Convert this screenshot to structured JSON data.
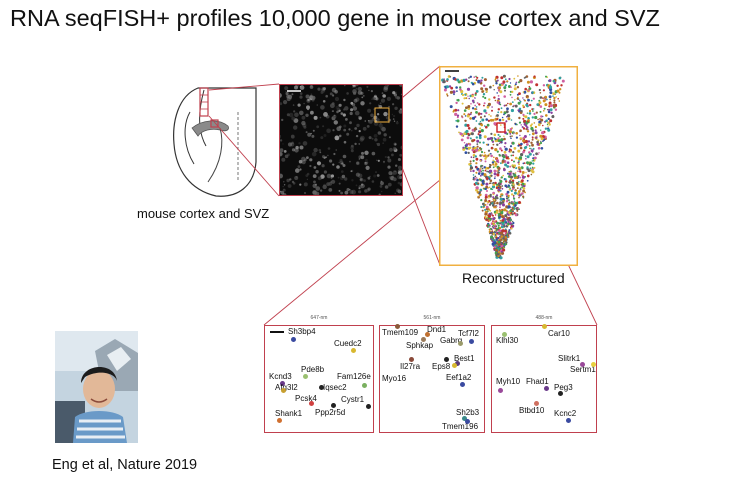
{
  "title": "RNA seqFISH+ profiles 10,000 gene in mouse cortex and SVZ",
  "brain_label": "mouse cortex and SVZ",
  "recon_label": "Reconstructured",
  "citation": "Eng et al, Nature 2019",
  "colors": {
    "outline": "#c0404e",
    "zoom_box": "#f0b040",
    "accent_red": "#cc2020"
  },
  "panels": [
    {
      "header": "647-nm",
      "genes": [
        {
          "name": "Sh3bp4",
          "dot": "#3a4aa0"
        },
        {
          "name": "Cuedc2",
          "dot": "#d8b830"
        },
        {
          "name": "Pde8b",
          "dot": "#9ac070"
        },
        {
          "name": "Kcnd3",
          "dot": "#6a3a8a"
        },
        {
          "name": "Afg3l2",
          "dot": "#c8a030"
        },
        {
          "name": "Fam126e",
          "dot": "#7ab060"
        },
        {
          "name": "Iqsec2",
          "dot": "#222222"
        },
        {
          "name": "Pcsk4",
          "dot": "#d04040"
        },
        {
          "name": "Cystr1",
          "dot": "#222222"
        },
        {
          "name": "Shank1",
          "dot": "#d07030"
        },
        {
          "name": "Ppp2r5d",
          "dot": "#222222"
        }
      ]
    },
    {
      "header": "561-nm",
      "genes": [
        {
          "name": "Tmem109",
          "dot": "#8a5a3a"
        },
        {
          "name": "Dnd1",
          "dot": "#c07030"
        },
        {
          "name": "Tcf7l2",
          "dot": "#3a4aa0"
        },
        {
          "name": "Sphkap",
          "dot": "#9a7a5a"
        },
        {
          "name": "Gabrq",
          "dot": "#9a9a6a"
        },
        {
          "name": "Best1",
          "dot": "#5a3a7a"
        },
        {
          "name": "Il27ra",
          "dot": "#8a4a3a"
        },
        {
          "name": "Eps8",
          "dot": "#222222"
        },
        {
          "name": "Myo16",
          "dot": "#d8b830"
        },
        {
          "name": "Eef1a2",
          "dot": "#3a4aa0"
        },
        {
          "name": "Sh2b3",
          "dot": "#3a8a8a"
        },
        {
          "name": "Tmem196",
          "dot": "#3a4aa0"
        }
      ]
    },
    {
      "header": "488-nm",
      "genes": [
        {
          "name": "Car10",
          "dot": "#d8b830"
        },
        {
          "name": "Klhl30",
          "dot": "#9ac070"
        },
        {
          "name": "Slitrk1",
          "dot": "#9a4a9a"
        },
        {
          "name": "Sertm1",
          "dot": "#e8d040"
        },
        {
          "name": "Myh10",
          "dot": "#9a4a9a"
        },
        {
          "name": "Fhad1",
          "dot": "#6a3a8a"
        },
        {
          "name": "Peg3",
          "dot": "#222222"
        },
        {
          "name": "Btbd10",
          "dot": "#d07060"
        },
        {
          "name": "Kcnc2",
          "dot": "#3a4aa0"
        }
      ]
    }
  ]
}
